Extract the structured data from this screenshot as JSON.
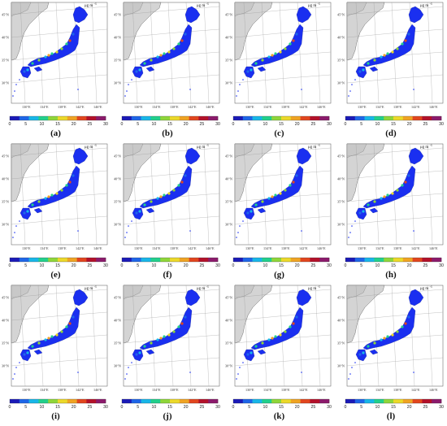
{
  "unit": "μg m⁻³",
  "unit_text": "μg m",
  "unit_exp": "-3",
  "lat_labels": [
    "45°N",
    "40°N",
    "35°N",
    "30°N"
  ],
  "lon_labels": [
    "130°E",
    "134°E",
    "138°E",
    "142°E",
    "146°E"
  ],
  "colorbar": {
    "ticks": [
      "0",
      "5",
      "10",
      "15",
      "20",
      "25",
      "30"
    ],
    "min": 0,
    "max": 30,
    "colors": [
      "#1b1ab8",
      "#1e66e8",
      "#18b7e8",
      "#22d08c",
      "#8fd63a",
      "#ecd92a",
      "#f0a423",
      "#e2461e",
      "#b4112a",
      "#8c1a6c"
    ]
  },
  "map_colors": {
    "land": "#d4d4d4",
    "japan_base": "#1a2ff0",
    "ocean": "#ffffff"
  },
  "panels": [
    {
      "label": "(a)"
    },
    {
      "label": "(b)"
    },
    {
      "label": "(c)"
    },
    {
      "label": "(d)"
    },
    {
      "label": "(e)"
    },
    {
      "label": "(f)"
    },
    {
      "label": "(g)"
    },
    {
      "label": "(h)"
    },
    {
      "label": "(i)"
    },
    {
      "label": "(j)"
    },
    {
      "label": "(k)"
    },
    {
      "label": "(l)"
    }
  ]
}
